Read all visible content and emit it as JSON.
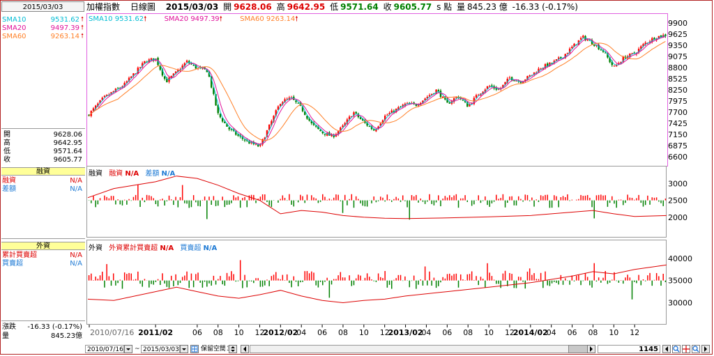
{
  "header": {
    "title": "加權指數",
    "period": "日線圖",
    "date": "2015/03/03",
    "open_label": "開",
    "open_value": "9628.06",
    "high_label": "高",
    "high_value": "9642.95",
    "low_label": "低",
    "low_value": "9571.64",
    "close_label": "收",
    "close_value": "9605.77",
    "unit": "s 點",
    "volume_label": "量",
    "volume_value": "845.23 億",
    "change": "-16.33 (-0.17%)"
  },
  "left": {
    "date": "2015/03/03",
    "sma": [
      {
        "name": "SMA10",
        "value": "9531.62",
        "color": "#00bcd4"
      },
      {
        "name": "SMA20",
        "value": "9497.39",
        "color": "#e0109a"
      },
      {
        "name": "SMA60",
        "value": "9263.14",
        "color": "#ff7f27"
      }
    ],
    "ohlc": [
      {
        "name": "開",
        "value": "9628.06"
      },
      {
        "name": "高",
        "value": "9642.95"
      },
      {
        "name": "低",
        "value": "9571.64"
      },
      {
        "name": "收",
        "value": "9605.77"
      }
    ],
    "margin_header": "融資",
    "margin_rows": [
      {
        "name": "融資",
        "value": "N/A"
      },
      {
        "name": "差額",
        "value": "N/A"
      }
    ],
    "foreign_header": "外資",
    "foreign_rows": [
      {
        "name": "累計買賣超",
        "value": "N/A"
      },
      {
        "name": "買賣超",
        "value": "N/A"
      }
    ],
    "change_label": "漲跌",
    "change_value": "-16.33 (-0.17%)",
    "volume_label": "量",
    "volume_value": "845.23億"
  },
  "price_legend": [
    {
      "name": "SMA10",
      "value": "9531.62",
      "color": "#00bcd4"
    },
    {
      "name": "SMA20",
      "value": "9497.39",
      "color": "#e0109a"
    },
    {
      "name": "SMA60",
      "value": "9263.14",
      "color": "#ff7f27"
    }
  ],
  "margin_legend": {
    "title": "融資",
    "a_name": "融資",
    "a_value": "N/A",
    "b_name": "差額",
    "b_value": "N/A"
  },
  "foreign_legend": {
    "title": "外資",
    "a_name": "外資累計買賣超",
    "a_value": "N/A",
    "b_name": "買賣超",
    "b_value": "N/A"
  },
  "toolbar": {
    "start_date": "2010/07/16",
    "tilde": "~",
    "end_date": "2015/03/03",
    "keep_space_label": "保留空間",
    "keep_space_value": "3",
    "bar_count": "1145"
  },
  "colors": {
    "up": "#ff0000",
    "down": "#008000",
    "frame": "#b22222"
  },
  "chart_data": [
    {
      "type": "candlestick",
      "title": "加權指數 日線圖",
      "ylim": [
        6500,
        10000
      ],
      "yticks": [
        9900,
        9625,
        9350,
        9075,
        8800,
        8525,
        8250,
        7975,
        7700,
        7425,
        7150,
        6875,
        6600
      ],
      "xticks": [
        "2010/07/16",
        "2011/02",
        "06",
        "08",
        "10",
        "12",
        "2012/02",
        "04",
        "06",
        "08",
        "10",
        "12",
        "2013/02",
        "04",
        "06",
        "08",
        "10",
        "12",
        "2014/02",
        "04",
        "06",
        "08",
        "10",
        "12"
      ],
      "close_path": [
        [
          "2010/07/16",
          7620
        ],
        [
          "2010/09",
          8050
        ],
        [
          "2010/11",
          8380
        ],
        [
          "2011/01",
          8950
        ],
        [
          "2011/02",
          9020
        ],
        [
          "2011/03",
          8450
        ],
        [
          "2011/04",
          8680
        ],
        [
          "2011/05",
          8950
        ],
        [
          "2011/06",
          8780
        ],
        [
          "2011/07",
          8720
        ],
        [
          "2011/08",
          7650
        ],
        [
          "2011/09",
          7300
        ],
        [
          "2011/10",
          7100
        ],
        [
          "2011/11",
          6950
        ],
        [
          "2011/12",
          6850
        ],
        [
          "2012/01",
          7400
        ],
        [
          "2012/02",
          7950
        ],
        [
          "2012/03",
          8050
        ],
        [
          "2012/04",
          7800
        ],
        [
          "2012/05",
          7400
        ],
        [
          "2012/06",
          7200
        ],
        [
          "2012/07",
          7100
        ],
        [
          "2012/08",
          7350
        ],
        [
          "2012/09",
          7700
        ],
        [
          "2012/10",
          7450
        ],
        [
          "2012/11",
          7250
        ],
        [
          "2012/12",
          7600
        ],
        [
          "2013/01",
          7750
        ],
        [
          "2013/02",
          7900
        ],
        [
          "2013/03",
          7880
        ],
        [
          "2013/05",
          8250
        ],
        [
          "2013/06",
          7900
        ],
        [
          "2013/07",
          8100
        ],
        [
          "2013/08",
          7850
        ],
        [
          "2013/09",
          8150
        ],
        [
          "2013/10",
          8350
        ],
        [
          "2013/11",
          8250
        ],
        [
          "2013/12",
          8550
        ],
        [
          "2014/01",
          8450
        ],
        [
          "2014/02",
          8600
        ],
        [
          "2014/03",
          8800
        ],
        [
          "2014/04",
          8900
        ],
        [
          "2014/05",
          9050
        ],
        [
          "2014/06",
          9300
        ],
        [
          "2014/07",
          9550
        ],
        [
          "2014/08",
          9400
        ],
        [
          "2014/09",
          9200
        ],
        [
          "2014/10",
          8800
        ],
        [
          "2014/11",
          9050
        ],
        [
          "2014/12",
          9150
        ],
        [
          "2015/01",
          9400
        ],
        [
          "2015/02",
          9550
        ],
        [
          "2015/03/03",
          9605.77
        ]
      ],
      "series": [
        {
          "name": "SMA10",
          "value": 9531.62
        },
        {
          "name": "SMA20",
          "value": 9497.39
        },
        {
          "name": "SMA60",
          "value": 9263.14
        }
      ]
    },
    {
      "type": "bar",
      "title": "融資",
      "ylim": [
        1500,
        3400
      ],
      "yticks": [
        3000,
        2500,
        2000
      ],
      "series": [
        {
          "name": "融資",
          "value": "N/A"
        },
        {
          "name": "差額",
          "value": "N/A"
        }
      ],
      "balance_path": [
        [
          "2010/07/16",
          2580
        ],
        [
          "2010/10",
          2850
        ],
        [
          "2011/02",
          3050
        ],
        [
          "2011/04",
          3220
        ],
        [
          "2011/06",
          3150
        ],
        [
          "2011/08",
          2950
        ],
        [
          "2011/10",
          2700
        ],
        [
          "2011/12",
          2500
        ],
        [
          "2012/02",
          2100
        ],
        [
          "2012/04",
          2200
        ],
        [
          "2012/06",
          2150
        ],
        [
          "2012/08",
          2050
        ],
        [
          "2012/10",
          2000
        ],
        [
          "2012/12",
          1970
        ],
        [
          "2013/02",
          1960
        ],
        [
          "2013/06",
          1980
        ],
        [
          "2013/10",
          2010
        ],
        [
          "2014/02",
          2050
        ],
        [
          "2014/06",
          2150
        ],
        [
          "2014/08",
          2200
        ],
        [
          "2014/10",
          2100
        ],
        [
          "2014/12",
          2020
        ],
        [
          "2015/03/03",
          2050
        ]
      ]
    },
    {
      "type": "bar",
      "title": "外資",
      "ylim": [
        26000,
        42000
      ],
      "yticks": [
        40000,
        35000,
        30000
      ],
      "series": [
        {
          "name": "外資累計買賣超",
          "value": "N/A"
        },
        {
          "name": "買賣超",
          "value": "N/A"
        }
      ],
      "cumulative_path": [
        [
          "2010/07/16",
          30800
        ],
        [
          "2010/10",
          30500
        ],
        [
          "2011/02",
          32500
        ],
        [
          "2011/04",
          33500
        ],
        [
          "2011/06",
          32500
        ],
        [
          "2011/08",
          31500
        ],
        [
          "2011/10",
          31000
        ],
        [
          "2011/12",
          31800
        ],
        [
          "2012/02",
          32800
        ],
        [
          "2012/04",
          31500
        ],
        [
          "2012/06",
          30500
        ],
        [
          "2012/08",
          30000
        ],
        [
          "2012/10",
          30500
        ],
        [
          "2012/12",
          30800
        ],
        [
          "2013/02",
          31500
        ],
        [
          "2013/06",
          32500
        ],
        [
          "2013/10",
          33500
        ],
        [
          "2014/02",
          34500
        ],
        [
          "2014/06",
          36000
        ],
        [
          "2014/08",
          37000
        ],
        [
          "2014/10",
          36500
        ],
        [
          "2014/12",
          37500
        ],
        [
          "2015/03/03",
          38500
        ]
      ]
    }
  ]
}
